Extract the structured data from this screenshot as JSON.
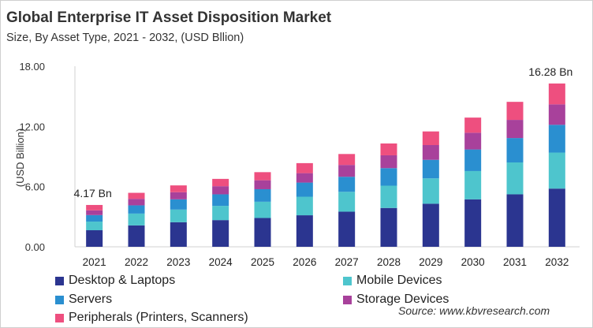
{
  "chart_data": {
    "type": "bar",
    "stacked": true,
    "title": "Global Enterprise IT Asset Disposition Market",
    "subtitle": "Size, By Asset Type, 2021 - 2032, (USD Bllion)",
    "xlabel": "",
    "ylabel": "(USD Billion)",
    "ylim": [
      0,
      18
    ],
    "yticks": [
      "0.00",
      "6.00",
      "12.00",
      "18.00"
    ],
    "grid": false,
    "legend_position": "bottom",
    "categories": [
      "2021",
      "2022",
      "2023",
      "2024",
      "2025",
      "2026",
      "2027",
      "2028",
      "2029",
      "2030",
      "2031",
      "2032"
    ],
    "series": [
      {
        "name": "Desktop & Laptops",
        "color": "#2B3590",
        "values": [
          1.65,
          2.13,
          2.45,
          2.66,
          2.87,
          3.14,
          3.5,
          3.87,
          4.29,
          4.73,
          5.23,
          5.8
        ]
      },
      {
        "name": "Mobile Devices",
        "color": "#4EC5CD",
        "values": [
          0.86,
          1.18,
          1.26,
          1.42,
          1.62,
          1.85,
          1.98,
          2.22,
          2.53,
          2.82,
          3.18,
          3.59
        ]
      },
      {
        "name": "Servers",
        "color": "#2A8FD0",
        "values": [
          0.65,
          0.82,
          1.02,
          1.15,
          1.25,
          1.41,
          1.5,
          1.75,
          1.85,
          2.15,
          2.43,
          2.77
        ]
      },
      {
        "name": "Storage Devices",
        "color": "#A8419B",
        "values": [
          0.47,
          0.65,
          0.71,
          0.81,
          0.89,
          0.94,
          1.18,
          1.28,
          1.47,
          1.67,
          1.81,
          2.04
        ]
      },
      {
        "name": "Peripherals (Printers, Scanners)",
        "color": "#EE4F7F",
        "values": [
          0.54,
          0.6,
          0.68,
          0.73,
          0.81,
          1.0,
          1.09,
          1.18,
          1.36,
          1.51,
          1.8,
          2.08
        ]
      }
    ],
    "annotations": [
      {
        "category": "2021",
        "text": "4.17 Bn"
      },
      {
        "category": "2032",
        "text": "16.28 Bn"
      }
    ],
    "source": "Source: www.kbvresearch.com"
  }
}
